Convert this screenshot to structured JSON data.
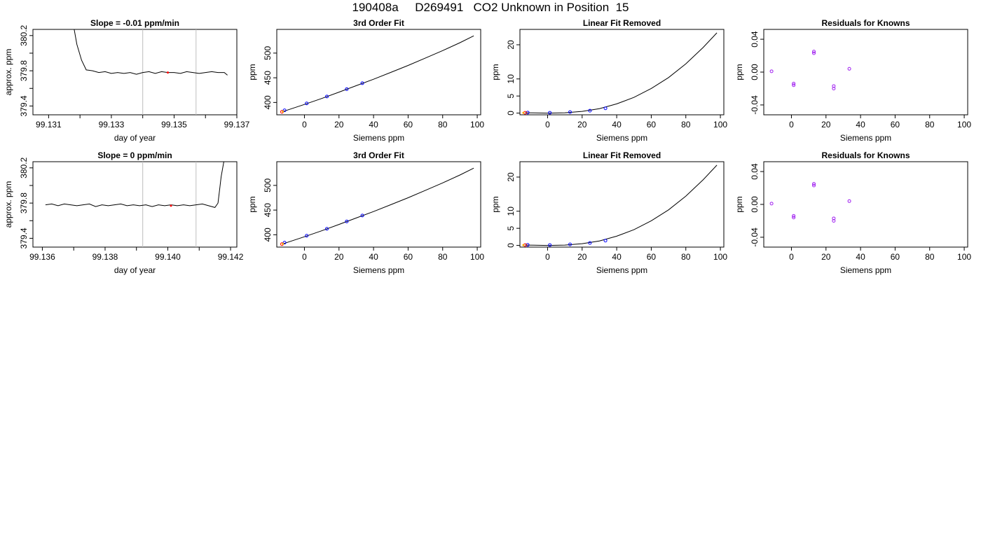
{
  "page": {
    "title": "190408a     D269491   CO2 Unknown in Position  15"
  },
  "colors": {
    "line": "#000000",
    "known_points": "#0000ff",
    "residual_points": "#a020f0",
    "unknown_point": "#ff0000",
    "orange_point": "#ffa500",
    "marker_line": "#bebebe"
  },
  "chart_data": [
    {
      "type": "line",
      "title": "Slope =  -0.01  ppm/min",
      "xlabel": "day of year",
      "ylabel": "approx. ppm",
      "xlim": [
        99.1305,
        99.137
      ],
      "ylim": [
        379.3,
        380.27
      ],
      "xticks": [
        99.131,
        99.132,
        99.133,
        99.134,
        99.135,
        99.136,
        99.137
      ],
      "xtick_labels": [
        "99.131",
        "",
        "99.133",
        "",
        "99.135",
        "",
        "99.137"
      ],
      "yticks": [
        379.4,
        379.6,
        379.8,
        380.0,
        380.2
      ],
      "ytick_labels": [
        "379.4",
        "",
        "379.8",
        "",
        "380.2"
      ],
      "vlines": [
        99.134,
        99.1357
      ],
      "highlight": {
        "x": 99.1348,
        "y": 379.78
      },
      "series": [
        {
          "x": [
            99.1318,
            99.1319,
            99.13205,
            99.1322,
            99.1324,
            99.1326,
            99.1328,
            99.133,
            99.1332,
            99.1334,
            99.1336,
            99.1338,
            99.134,
            99.1342,
            99.1344,
            99.1346,
            99.1348,
            99.135,
            99.1352,
            99.1354,
            99.1356,
            99.1358,
            99.136,
            99.1362,
            99.1364,
            99.1366,
            99.1367
          ],
          "y": [
            380.3,
            380.1,
            379.92,
            379.81,
            379.8,
            379.78,
            379.79,
            379.77,
            379.78,
            379.77,
            379.78,
            379.76,
            379.78,
            379.79,
            379.77,
            379.79,
            379.78,
            379.78,
            379.77,
            379.79,
            379.78,
            379.77,
            379.78,
            379.79,
            379.78,
            379.78,
            379.75
          ]
        }
      ]
    },
    {
      "type": "scatter",
      "title": "3rd Order Fit",
      "xlabel": "Siemens ppm",
      "ylabel": "ppm",
      "xlim": [
        -16,
        102
      ],
      "ylim": [
        375,
        548
      ],
      "xticks": [
        0,
        20,
        40,
        60,
        80,
        100
      ],
      "xtick_labels": [
        "0",
        "20",
        "40",
        "60",
        "80",
        "100"
      ],
      "yticks": [
        400,
        450,
        500
      ],
      "ytick_labels": [
        "400",
        "450",
        "500"
      ],
      "fit": {
        "x": [
          -13,
          0,
          10,
          20,
          30,
          40,
          50,
          60,
          70,
          80,
          90,
          98
        ],
        "y": [
          381,
          396,
          408,
          421,
          434,
          447,
          461,
          475,
          490,
          505,
          521,
          535
        ]
      },
      "known_points": {
        "x": [
          -11.5,
          1.3,
          13,
          24.5,
          33.5
        ],
        "y": [
          384,
          398,
          412,
          427,
          439
        ]
      },
      "unknown_point": {
        "x": -13,
        "y": 381
      },
      "orange_point": {
        "x": -12.5,
        "y": 381.5
      }
    },
    {
      "type": "scatter",
      "title": "Linear Fit Removed",
      "xlabel": "Siemens ppm",
      "ylabel": "ppm",
      "xlim": [
        -16,
        102
      ],
      "ylim": [
        -0.5,
        24.5
      ],
      "xticks": [
        0,
        20,
        40,
        60,
        80,
        100
      ],
      "xtick_labels": [
        "0",
        "20",
        "40",
        "60",
        "80",
        "100"
      ],
      "yticks": [
        0,
        5,
        10,
        20
      ],
      "ytick_labels": [
        "0",
        "5",
        "10",
        "20"
      ],
      "fit": {
        "x": [
          -13,
          0,
          10,
          20,
          30,
          40,
          50,
          60,
          70,
          80,
          90,
          98
        ],
        "y": [
          0.1,
          0.0,
          0.1,
          0.5,
          1.3,
          2.7,
          4.6,
          7.2,
          10.4,
          14.4,
          19.2,
          23.5
        ]
      },
      "known_points": {
        "x": [
          -11.5,
          1.3,
          13,
          24.5,
          33.5
        ],
        "y": [
          0.15,
          0.1,
          0.3,
          0.7,
          1.4
        ]
      },
      "unknown_point": {
        "x": -13,
        "y": 0.1
      },
      "orange_point": {
        "x": -14,
        "y": 0.1
      }
    },
    {
      "type": "scatter",
      "title": "Residuals for Knowns",
      "xlabel": "Siemens ppm",
      "ylabel": "ppm",
      "xlim": [
        -16,
        102
      ],
      "ylim": [
        -0.052,
        0.052
      ],
      "xticks": [
        0,
        20,
        40,
        60,
        80,
        100
      ],
      "xtick_labels": [
        "0",
        "20",
        "40",
        "60",
        "80",
        "100"
      ],
      "yticks": [
        -0.04,
        0.0,
        0.04
      ],
      "ytick_labels": [
        "-0.04",
        "0.00",
        "0.04"
      ],
      "points": {
        "x": [
          -11.5,
          1.3,
          1.3,
          13,
          13,
          24.5,
          24.5,
          33.5
        ],
        "y": [
          0.001,
          -0.014,
          -0.016,
          0.025,
          0.023,
          -0.017,
          -0.02,
          0.004
        ]
      }
    },
    {
      "type": "line",
      "title": "Slope =  0  ppm/min",
      "xlabel": "day of year",
      "ylabel": "approx. ppm",
      "xlim": [
        99.1357,
        99.1422
      ],
      "ylim": [
        379.3,
        380.27
      ],
      "xticks": [
        99.136,
        99.137,
        99.138,
        99.139,
        99.14,
        99.141,
        99.142
      ],
      "xtick_labels": [
        "99.136",
        "",
        "99.138",
        "",
        "99.140",
        "",
        "99.142"
      ],
      "yticks": [
        379.4,
        379.6,
        379.8,
        380.0,
        380.2
      ],
      "ytick_labels": [
        "379.4",
        "",
        "379.8",
        "",
        "380.2"
      ],
      "vlines": [
        99.1392,
        99.1409
      ],
      "highlight": {
        "x": 99.1401,
        "y": 379.77
      },
      "series": [
        {
          "x": [
            99.1361,
            99.1363,
            99.1365,
            99.1367,
            99.1369,
            99.1371,
            99.1373,
            99.1375,
            99.1377,
            99.1379,
            99.1381,
            99.1383,
            99.1385,
            99.1387,
            99.1389,
            99.1391,
            99.1393,
            99.1395,
            99.1397,
            99.1399,
            99.1401,
            99.1403,
            99.1405,
            99.1407,
            99.1409,
            99.1411,
            99.1413,
            99.1415,
            99.1416,
            99.14165,
            99.1417,
            99.1418
          ],
          "y": [
            379.78,
            379.79,
            379.77,
            379.79,
            379.78,
            379.77,
            379.78,
            379.79,
            379.76,
            379.78,
            379.77,
            379.78,
            379.79,
            379.77,
            379.78,
            379.77,
            379.78,
            379.76,
            379.78,
            379.77,
            379.78,
            379.77,
            379.78,
            379.77,
            379.78,
            379.79,
            379.77,
            379.75,
            379.8,
            379.95,
            380.1,
            380.3
          ]
        }
      ]
    },
    {
      "type": "scatter",
      "title": "3rd Order Fit",
      "xlabel": "Siemens ppm",
      "ylabel": "ppm",
      "xlim": [
        -16,
        102
      ],
      "ylim": [
        375,
        548
      ],
      "xticks": [
        0,
        20,
        40,
        60,
        80,
        100
      ],
      "xtick_labels": [
        "0",
        "20",
        "40",
        "60",
        "80",
        "100"
      ],
      "yticks": [
        400,
        450,
        500
      ],
      "ytick_labels": [
        "400",
        "450",
        "500"
      ],
      "fit": {
        "x": [
          -13,
          0,
          10,
          20,
          30,
          40,
          50,
          60,
          70,
          80,
          90,
          98
        ],
        "y": [
          381,
          396,
          408,
          421,
          434,
          447,
          461,
          475,
          490,
          505,
          521,
          535
        ]
      },
      "known_points": {
        "x": [
          -11.5,
          1.3,
          13,
          24.5,
          33.5
        ],
        "y": [
          384,
          398,
          412,
          427,
          439
        ]
      },
      "unknown_point": {
        "x": -13,
        "y": 381
      },
      "orange_point": {
        "x": -12.5,
        "y": 381.5
      }
    },
    {
      "type": "scatter",
      "title": "Linear Fit Removed",
      "xlabel": "Siemens ppm",
      "ylabel": "ppm",
      "xlim": [
        -16,
        102
      ],
      "ylim": [
        -0.5,
        24.5
      ],
      "xticks": [
        0,
        20,
        40,
        60,
        80,
        100
      ],
      "xtick_labels": [
        "0",
        "20",
        "40",
        "60",
        "80",
        "100"
      ],
      "yticks": [
        0,
        5,
        10,
        20
      ],
      "ytick_labels": [
        "0",
        "5",
        "10",
        "20"
      ],
      "fit": {
        "x": [
          -13,
          0,
          10,
          20,
          30,
          40,
          50,
          60,
          70,
          80,
          90,
          98
        ],
        "y": [
          0.1,
          0.0,
          0.1,
          0.5,
          1.3,
          2.7,
          4.6,
          7.2,
          10.4,
          14.4,
          19.2,
          23.5
        ]
      },
      "known_points": {
        "x": [
          -11.5,
          1.3,
          13,
          24.5,
          33.5
        ],
        "y": [
          0.15,
          0.1,
          0.3,
          0.7,
          1.4
        ]
      },
      "unknown_point": {
        "x": -13,
        "y": 0.1
      },
      "orange_point": {
        "x": -14,
        "y": 0.1
      }
    },
    {
      "type": "scatter",
      "title": "Residuals for Knowns",
      "xlabel": "Siemens ppm",
      "ylabel": "ppm",
      "xlim": [
        -16,
        102
      ],
      "ylim": [
        -0.052,
        0.052
      ],
      "xticks": [
        0,
        20,
        40,
        60,
        80,
        100
      ],
      "xtick_labels": [
        "0",
        "20",
        "40",
        "60",
        "80",
        "100"
      ],
      "yticks": [
        -0.04,
        0.0,
        0.04
      ],
      "ytick_labels": [
        "-0.04",
        "0.00",
        "0.04"
      ],
      "points": {
        "x": [
          -11.5,
          1.3,
          1.3,
          13,
          13,
          24.5,
          24.5,
          33.5
        ],
        "y": [
          0.001,
          -0.014,
          -0.016,
          0.025,
          0.023,
          -0.017,
          -0.02,
          0.004
        ]
      }
    }
  ]
}
